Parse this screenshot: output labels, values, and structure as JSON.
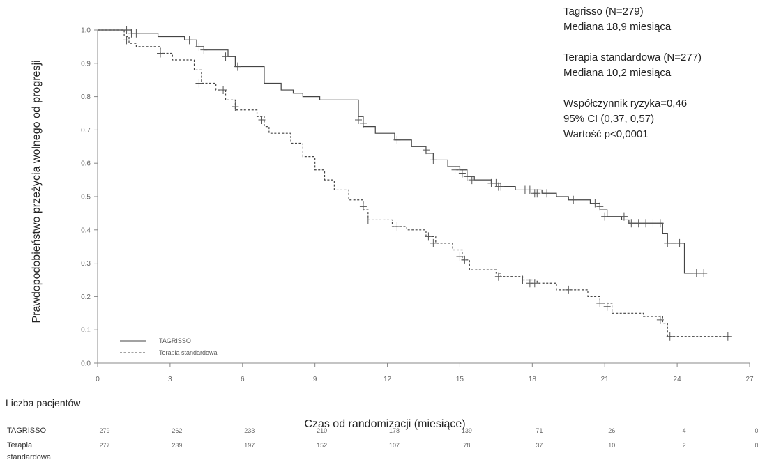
{
  "chart_data": {
    "type": "line",
    "xlabel": "Czas od randomizacji (miesiące)",
    "ylabel": "Prawdopodobieństwo przeżycia wolnego od progresji",
    "xlim": [
      0,
      27
    ],
    "ylim": [
      0,
      1.0
    ],
    "x_ticks": [
      "0",
      "3",
      "6",
      "9",
      "12",
      "15",
      "18",
      "21",
      "24",
      "27"
    ],
    "y_ticks": [
      "0.0",
      "0.1",
      "0.2",
      "0.3",
      "0.4",
      "0.5",
      "0.6",
      "0.7",
      "0.8",
      "0.9",
      "1.0"
    ],
    "legend": {
      "position": "bottom-left"
    },
    "series": [
      {
        "name": "TAGRISSO",
        "style": "solid",
        "color": "#444444",
        "steps": [
          [
            0,
            1.0
          ],
          [
            1.4,
            0.99
          ],
          [
            2.5,
            0.98
          ],
          [
            3.6,
            0.97
          ],
          [
            4.1,
            0.95
          ],
          [
            4.4,
            0.94
          ],
          [
            5.4,
            0.92
          ],
          [
            5.7,
            0.89
          ],
          [
            6.9,
            0.84
          ],
          [
            7.6,
            0.82
          ],
          [
            8.1,
            0.81
          ],
          [
            8.5,
            0.8
          ],
          [
            9.2,
            0.79
          ],
          [
            10.8,
            0.74
          ],
          [
            11.0,
            0.71
          ],
          [
            11.5,
            0.69
          ],
          [
            12.3,
            0.67
          ],
          [
            13.0,
            0.65
          ],
          [
            13.6,
            0.63
          ],
          [
            13.9,
            0.61
          ],
          [
            14.5,
            0.59
          ],
          [
            15.0,
            0.58
          ],
          [
            15.3,
            0.56
          ],
          [
            15.6,
            0.55
          ],
          [
            16.3,
            0.54
          ],
          [
            16.7,
            0.53
          ],
          [
            17.3,
            0.52
          ],
          [
            18.4,
            0.51
          ],
          [
            19.0,
            0.5
          ],
          [
            19.5,
            0.49
          ],
          [
            20.4,
            0.48
          ],
          [
            20.8,
            0.46
          ],
          [
            21.1,
            0.44
          ],
          [
            21.7,
            0.43
          ],
          [
            22.0,
            0.42
          ],
          [
            23.4,
            0.39
          ],
          [
            23.6,
            0.36
          ],
          [
            24.3,
            0.27
          ],
          [
            25.1,
            0.27
          ]
        ],
        "censors": [
          [
            1.2,
            1.0
          ],
          [
            1.4,
            0.99
          ],
          [
            1.6,
            0.99
          ],
          [
            3.8,
            0.97
          ],
          [
            4.2,
            0.95
          ],
          [
            4.4,
            0.94
          ],
          [
            5.3,
            0.92
          ],
          [
            5.8,
            0.89
          ],
          [
            10.8,
            0.73
          ],
          [
            11.0,
            0.72
          ],
          [
            12.4,
            0.67
          ],
          [
            13.6,
            0.64
          ],
          [
            13.9,
            0.61
          ],
          [
            14.8,
            0.58
          ],
          [
            15.0,
            0.58
          ],
          [
            15.1,
            0.57
          ],
          [
            15.3,
            0.56
          ],
          [
            15.5,
            0.55
          ],
          [
            16.3,
            0.54
          ],
          [
            16.5,
            0.54
          ],
          [
            16.6,
            0.53
          ],
          [
            16.7,
            0.53
          ],
          [
            17.7,
            0.52
          ],
          [
            17.9,
            0.52
          ],
          [
            18.1,
            0.51
          ],
          [
            18.2,
            0.51
          ],
          [
            18.6,
            0.51
          ],
          [
            19.7,
            0.49
          ],
          [
            20.6,
            0.48
          ],
          [
            20.8,
            0.47
          ],
          [
            21.0,
            0.44
          ],
          [
            21.8,
            0.44
          ],
          [
            22.1,
            0.42
          ],
          [
            22.4,
            0.42
          ],
          [
            22.7,
            0.42
          ],
          [
            23.0,
            0.42
          ],
          [
            23.3,
            0.42
          ],
          [
            23.6,
            0.36
          ],
          [
            24.1,
            0.36
          ],
          [
            24.8,
            0.27
          ],
          [
            25.1,
            0.27
          ]
        ]
      },
      {
        "name": "Terapia standardowa",
        "style": "dashed",
        "color": "#444444",
        "steps": [
          [
            0,
            1.0
          ],
          [
            1.1,
            0.98
          ],
          [
            1.3,
            0.96
          ],
          [
            1.6,
            0.95
          ],
          [
            2.6,
            0.93
          ],
          [
            3.1,
            0.91
          ],
          [
            4.0,
            0.88
          ],
          [
            4.3,
            0.84
          ],
          [
            4.9,
            0.82
          ],
          [
            5.3,
            0.79
          ],
          [
            5.7,
            0.76
          ],
          [
            6.6,
            0.74
          ],
          [
            6.9,
            0.71
          ],
          [
            7.1,
            0.69
          ],
          [
            8.0,
            0.66
          ],
          [
            8.5,
            0.62
          ],
          [
            9.0,
            0.58
          ],
          [
            9.4,
            0.55
          ],
          [
            9.8,
            0.52
          ],
          [
            10.4,
            0.49
          ],
          [
            11.0,
            0.46
          ],
          [
            11.2,
            0.43
          ],
          [
            12.2,
            0.41
          ],
          [
            12.8,
            0.4
          ],
          [
            13.6,
            0.38
          ],
          [
            14.0,
            0.36
          ],
          [
            14.7,
            0.34
          ],
          [
            15.1,
            0.31
          ],
          [
            15.4,
            0.28
          ],
          [
            16.5,
            0.27
          ],
          [
            16.7,
            0.26
          ],
          [
            17.6,
            0.25
          ],
          [
            18.2,
            0.24
          ],
          [
            19.0,
            0.22
          ],
          [
            20.3,
            0.2
          ],
          [
            20.8,
            0.18
          ],
          [
            21.3,
            0.15
          ],
          [
            22.6,
            0.14
          ],
          [
            23.4,
            0.12
          ],
          [
            23.6,
            0.08
          ],
          [
            26.2,
            0.08
          ]
        ],
        "censors": [
          [
            1.2,
            0.97
          ],
          [
            2.6,
            0.93
          ],
          [
            4.2,
            0.84
          ],
          [
            5.2,
            0.82
          ],
          [
            5.7,
            0.77
          ],
          [
            6.8,
            0.73
          ],
          [
            11.0,
            0.47
          ],
          [
            11.2,
            0.43
          ],
          [
            12.4,
            0.41
          ],
          [
            13.7,
            0.38
          ],
          [
            13.9,
            0.36
          ],
          [
            15.0,
            0.32
          ],
          [
            15.2,
            0.31
          ],
          [
            16.6,
            0.26
          ],
          [
            17.6,
            0.25
          ],
          [
            17.9,
            0.24
          ],
          [
            18.1,
            0.24
          ],
          [
            19.5,
            0.22
          ],
          [
            20.8,
            0.18
          ],
          [
            21.1,
            0.17
          ],
          [
            23.3,
            0.13
          ],
          [
            23.7,
            0.08
          ],
          [
            26.1,
            0.08
          ]
        ]
      }
    ]
  },
  "annotations": {
    "lines": [
      "Tagrisso (N=279)",
      "Mediana 18,9 miesiąca",
      "",
      "Terapia standardowa (N=277)",
      "Mediana 10,2 miesiąca",
      "",
      "Współczynnik ryzyka=0,46",
      "95% CI (0,37, 0,57)",
      "Wartość p<0,0001"
    ]
  },
  "risk_table": {
    "title": "Liczba pacjentów",
    "rows": [
      {
        "label": [
          "TAGRISSO"
        ],
        "values": [
          "279",
          "262",
          "233",
          "210",
          "178",
          "139",
          "71",
          "26",
          "4",
          "0"
        ]
      },
      {
        "label": [
          "Terapia",
          "standardowa"
        ],
        "values": [
          "277",
          "239",
          "197",
          "152",
          "107",
          "78",
          "37",
          "10",
          "2",
          "0"
        ]
      }
    ]
  },
  "legend_labels": [
    "TAGRISSO",
    "Terapia standardowa"
  ]
}
